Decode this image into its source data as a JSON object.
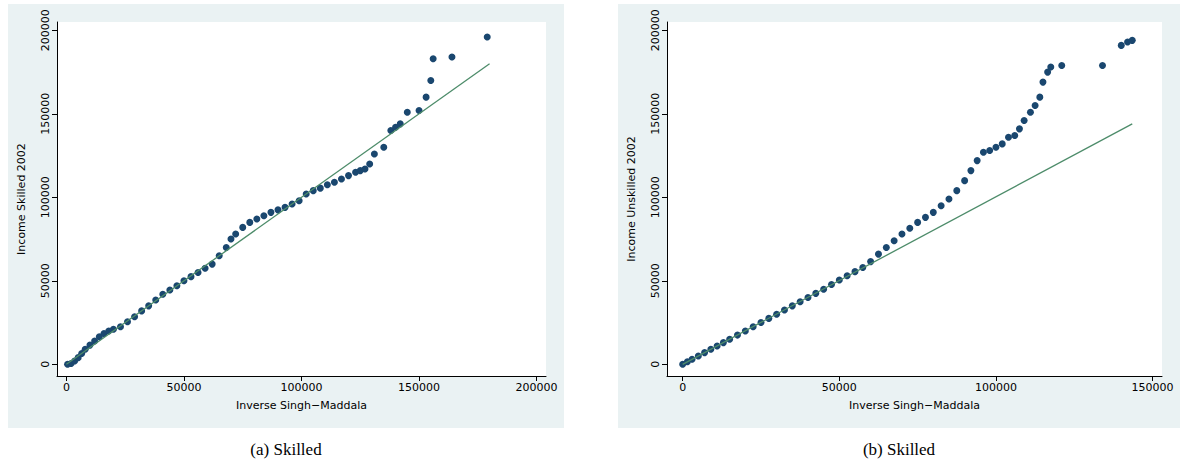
{
  "chart_data": [
    {
      "type": "scatter",
      "title": "(a) Skilled",
      "x_label": "Inverse Singh−Maddala",
      "y_label": "Income Skilled 2002",
      "xlim": [
        -4000,
        204000
      ],
      "xticks": [
        0,
        50000,
        100000,
        150000,
        200000
      ],
      "ylim": [
        -7000,
        205000
      ],
      "yticks": [
        0,
        50000,
        100000,
        150000,
        200000
      ],
      "grid": false,
      "series": [
        {
          "type": "scatter",
          "color": "#1a476f",
          "marker": "circle",
          "x": [
            500,
            2000,
            3500,
            5000,
            6500,
            8000,
            10000,
            12000,
            14000,
            16000,
            18000,
            20000,
            23000,
            26000,
            29000,
            32000,
            35000,
            38000,
            41000,
            44000,
            47000,
            50000,
            53000,
            56000,
            59000,
            62000,
            65000,
            68000,
            70000,
            72000,
            75000,
            78000,
            81000,
            84000,
            87000,
            90000,
            93000,
            96000,
            99000,
            102000,
            105000,
            108000,
            111000,
            114000,
            117000,
            120000,
            123000,
            125000,
            127000,
            129000,
            131000,
            135000,
            138000,
            140000,
            142000,
            145000,
            150000,
            153000,
            155000,
            156000,
            164000,
            179000
          ],
          "values": [
            0,
            500,
            2000,
            4000,
            6500,
            9000,
            11500,
            14000,
            16500,
            18500,
            20000,
            21000,
            22500,
            25500,
            28500,
            32000,
            35000,
            38500,
            42000,
            44500,
            47000,
            50000,
            52500,
            55000,
            57500,
            60000,
            65000,
            70000,
            75000,
            78000,
            82000,
            85000,
            87000,
            89000,
            91000,
            92500,
            94000,
            96000,
            98000,
            102000,
            104000,
            105500,
            107500,
            109000,
            111000,
            113000,
            115000,
            116000,
            117000,
            120000,
            126000,
            130000,
            140000,
            142000,
            144000,
            151000,
            152000,
            160000,
            170000,
            183000,
            184000,
            196000
          ]
        },
        {
          "type": "line",
          "color": "#4d8c6a",
          "x": [
            0,
            180000
          ],
          "values": [
            0,
            180000
          ]
        }
      ]
    },
    {
      "type": "scatter",
      "title": "(b) Skilled",
      "x_label": "Inverse Singh−Maddala",
      "y_label": "Income Unskilled 2002",
      "xlim": [
        -5000,
        153000
      ],
      "xticks": [
        0,
        50000,
        100000,
        150000
      ],
      "ylim": [
        -7000,
        205000
      ],
      "yticks": [
        0,
        50000,
        100000,
        150000,
        200000
      ],
      "grid": false,
      "series": [
        {
          "type": "scatter",
          "color": "#1a476f",
          "marker": "circle",
          "x": [
            0,
            1500,
            3000,
            5000,
            7000,
            9000,
            11000,
            13000,
            15000,
            17500,
            20000,
            22500,
            25000,
            27500,
            30000,
            32500,
            35000,
            37500,
            40000,
            42500,
            45000,
            47500,
            50000,
            52500,
            55000,
            57500,
            60000,
            62500,
            65000,
            67500,
            70000,
            72500,
            75000,
            77500,
            80000,
            82500,
            85000,
            87500,
            90000,
            92000,
            94000,
            96000,
            98000,
            100000,
            102000,
            104000,
            106000,
            107500,
            109000,
            111000,
            112500,
            114000,
            115000,
            116500,
            117500,
            121000,
            134000,
            140000,
            142000,
            143500
          ],
          "values": [
            0,
            1500,
            3000,
            5000,
            7000,
            9000,
            11000,
            13000,
            15000,
            17500,
            20000,
            22500,
            25000,
            27500,
            30000,
            32500,
            35000,
            37500,
            40000,
            42500,
            45000,
            47800,
            50500,
            53000,
            55500,
            58000,
            61500,
            66000,
            70000,
            74000,
            78000,
            81500,
            85000,
            88000,
            91000,
            95000,
            99000,
            104000,
            110000,
            116000,
            122000,
            127000,
            128000,
            130000,
            132000,
            136000,
            137000,
            141000,
            146000,
            151000,
            155000,
            160000,
            169000,
            175000,
            178000,
            179000,
            179000,
            191000,
            193000,
            194000
          ]
        },
        {
          "type": "line",
          "color": "#4d8c6a",
          "x": [
            0,
            143500
          ],
          "values": [
            0,
            144000
          ]
        }
      ]
    }
  ]
}
